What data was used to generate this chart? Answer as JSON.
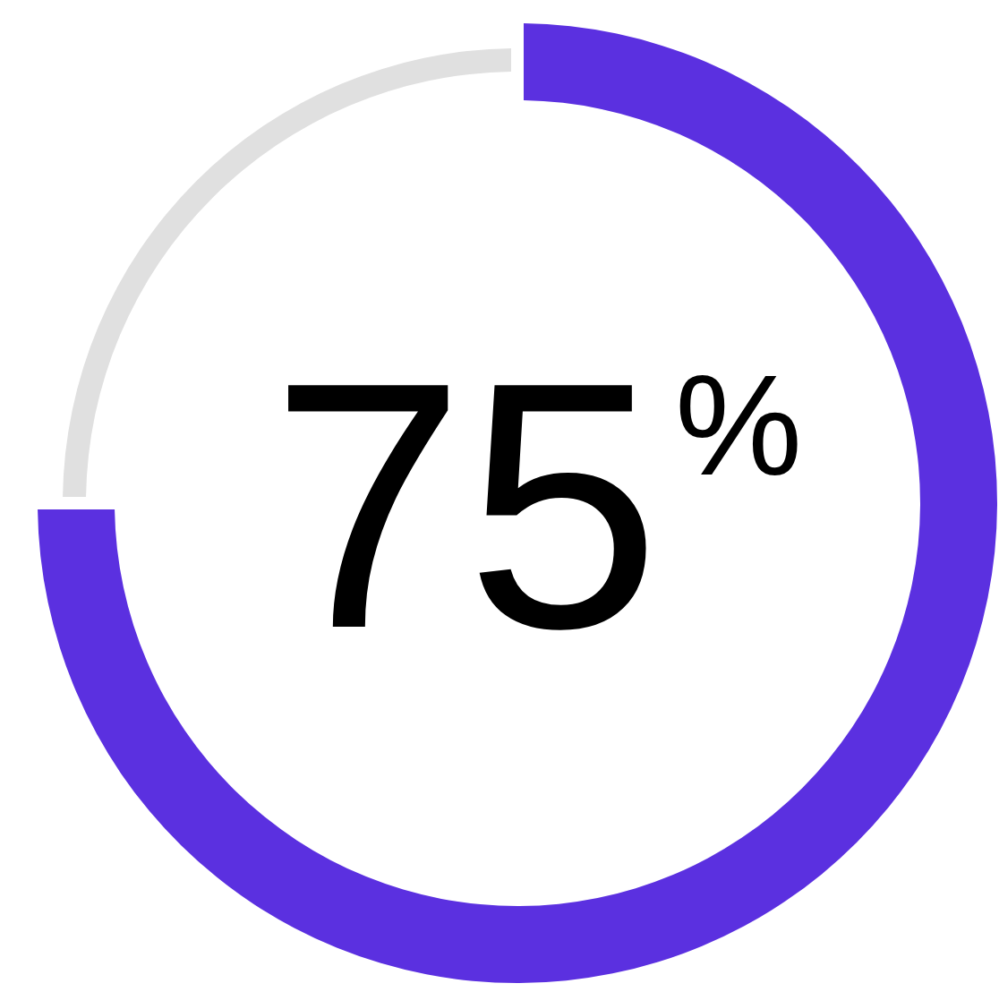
{
  "chart_data": {
    "type": "donut",
    "categories": [
      null,
      null
    ],
    "values": [
      75,
      25
    ],
    "colors": [
      "#5b30e0",
      "#e0e0e0"
    ],
    "annotations": [
      "75$^{%}$"
    ]
  }
}
